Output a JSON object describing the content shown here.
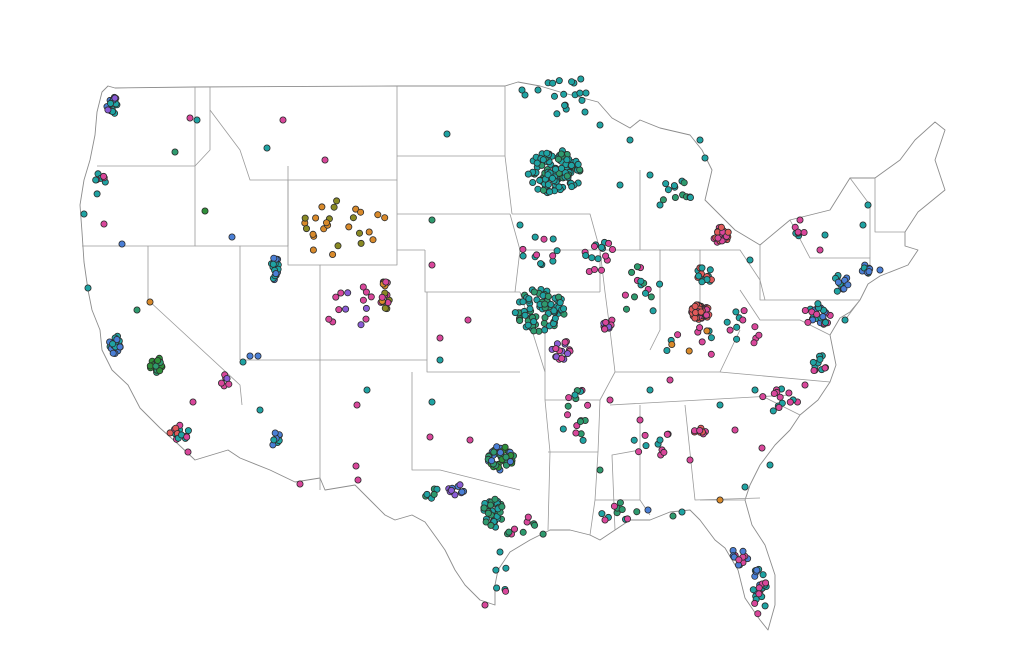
{
  "map": {
    "region": "contiguous-united-states",
    "background": "#ffffff",
    "border_color": "#9a9a9a",
    "palette": {
      "teal": "#1fa3a3",
      "green": "#2e9a6e",
      "dark-green": "#2f8f3a",
      "magenta": "#d9479b",
      "blue": "#4a7fd6",
      "purple": "#8a5cd6",
      "orange": "#d98a2b",
      "olive": "#8a8a24",
      "coral": "#e05a5a"
    },
    "grid": false,
    "legend": "none"
  }
}
